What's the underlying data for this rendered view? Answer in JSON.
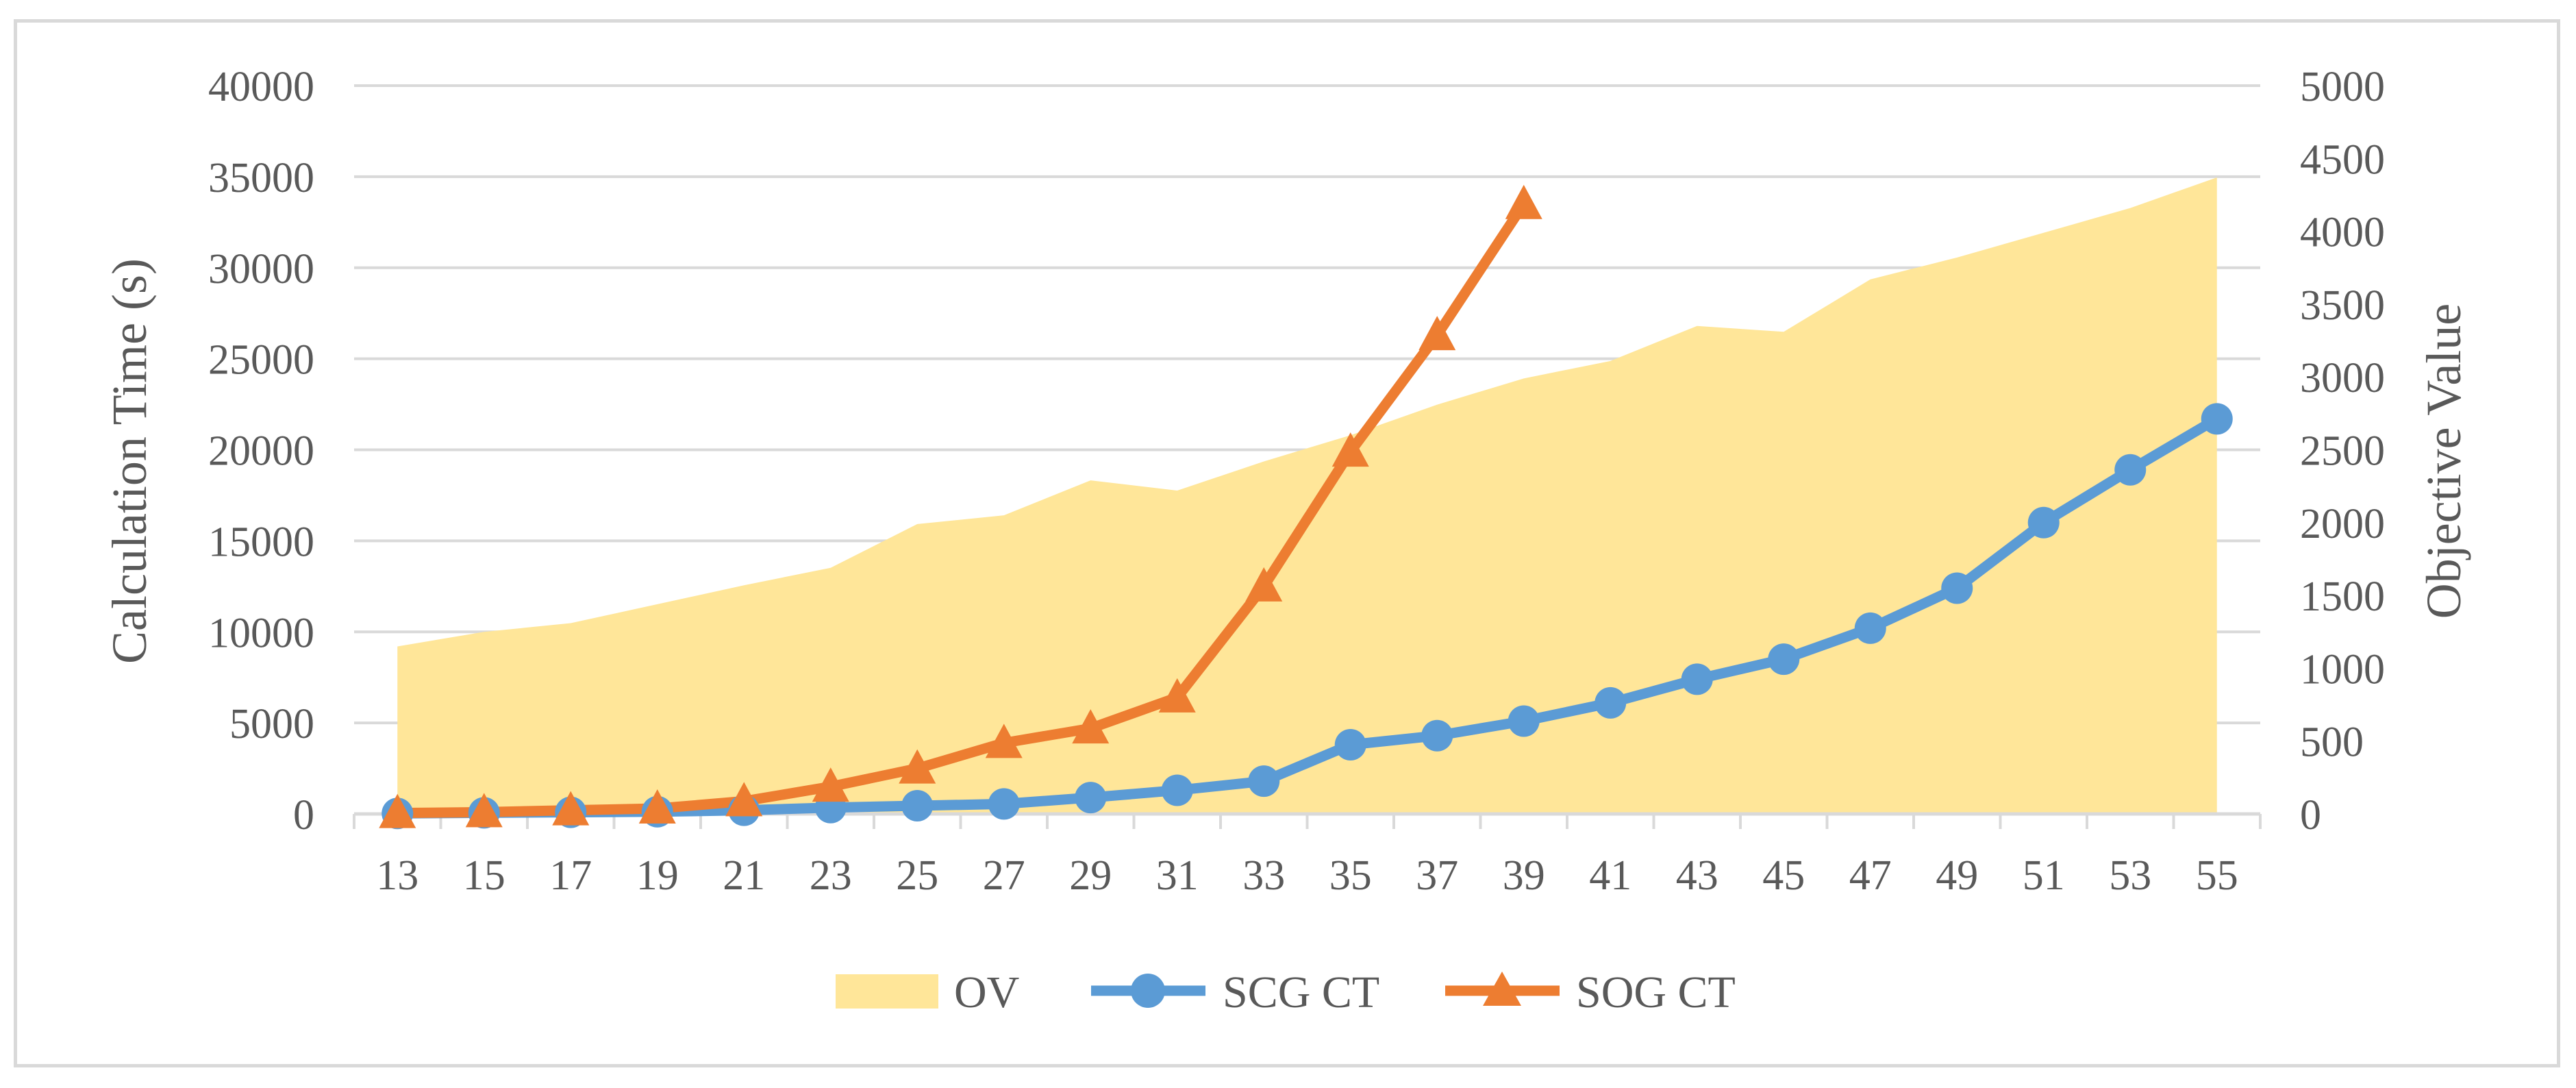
{
  "chart_data": {
    "type": "line+area",
    "title": "",
    "xlabel": "",
    "ylabel_left": "Calculation Time (s)",
    "ylabel_right": "Objective Value",
    "ylim_left": [
      0,
      40000
    ],
    "ylim_right": [
      0,
      5000
    ],
    "yticks_left": [
      0,
      5000,
      10000,
      15000,
      20000,
      25000,
      30000,
      35000,
      40000
    ],
    "yticks_right": [
      0,
      500,
      1000,
      1500,
      2000,
      2500,
      3000,
      3500,
      4000,
      4500,
      5000
    ],
    "grid": true,
    "legend_position": "bottom",
    "x": [
      13,
      15,
      17,
      19,
      21,
      23,
      25,
      27,
      29,
      31,
      33,
      35,
      37,
      39,
      41,
      43,
      45,
      47,
      49,
      51,
      53,
      55
    ],
    "series": [
      {
        "name": "OV",
        "kind": "area",
        "axis": "right",
        "color": "#ffe699",
        "values": [
          1150,
          1250,
          1310,
          1440,
          1570,
          1690,
          1990,
          2050,
          2290,
          2220,
          2420,
          2600,
          2810,
          2990,
          3110,
          3350,
          3310,
          3670,
          3820,
          3990,
          4160,
          4370
        ]
      },
      {
        "name": "SCG CT",
        "kind": "line",
        "marker": "circle",
        "axis": "left",
        "color": "#5b9bd5",
        "values": [
          30,
          60,
          90,
          120,
          200,
          350,
          450,
          550,
          900,
          1300,
          1800,
          3800,
          4300,
          5100,
          6100,
          7400,
          8500,
          10200,
          12400,
          16000,
          18900,
          21700
        ]
      },
      {
        "name": "SOG CT",
        "kind": "line",
        "marker": "triangle",
        "axis": "left",
        "color": "#ed7d31",
        "values": [
          50,
          100,
          200,
          300,
          700,
          1500,
          2500,
          3900,
          4700,
          6400,
          12500,
          19900,
          26300,
          33500,
          null,
          null,
          null,
          null,
          null,
          null,
          null,
          null
        ]
      }
    ]
  }
}
